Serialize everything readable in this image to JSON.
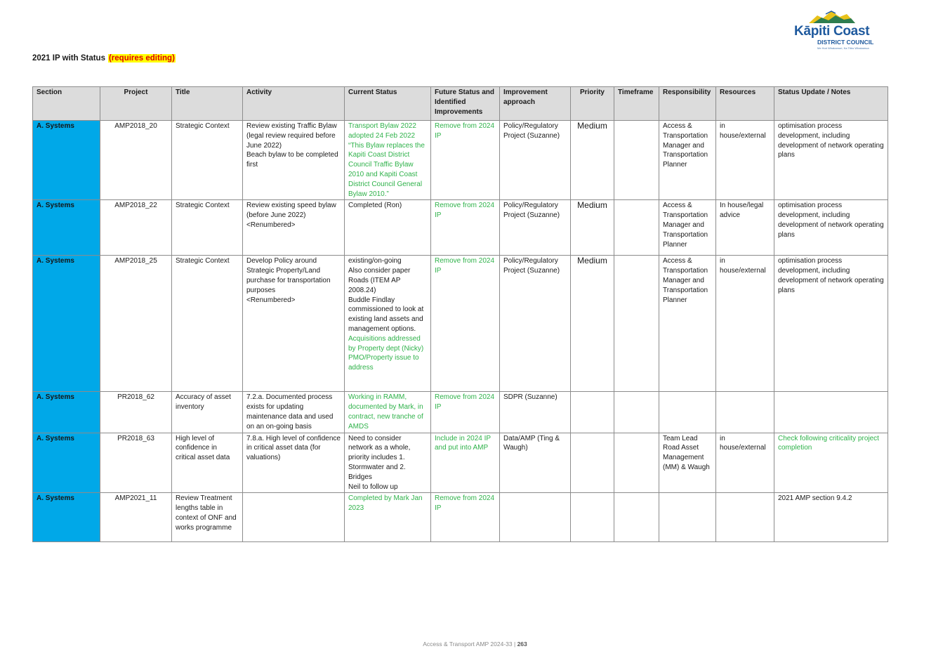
{
  "logo": {
    "name": "Kāpiti Coast",
    "sub": "DISTRICT COUNCIL",
    "tagline": "Me Huri Whakamuri, Ka Titiro Whakamua",
    "colors": {
      "mountain": "#e8c21a",
      "text": "#1f5a9e"
    }
  },
  "heading": {
    "title": "2021  IP with Status",
    "tag": "(requires editing)"
  },
  "table": {
    "headers": [
      "Section",
      "Project",
      "Title",
      "Activity",
      "Current Status",
      "Future Status and Identified Improvements",
      "Improvement approach",
      "Priority",
      "Timeframe",
      "Responsibility",
      "Resources",
      "Status Update / Notes"
    ],
    "rows": [
      {
        "section": "A. Systems",
        "project": "AMP2018_20",
        "title": "Strategic Context",
        "activity": [
          "Review existing Traffic Bylaw (legal review required before June 2022)",
          "Beach bylaw to be completed first"
        ],
        "current_status": [
          {
            "text": "Transport Bylaw 2022 adopted 24 Feb 2022 “This Bylaw replaces the Kapiti Coast District Council Traffic Bylaw 2010 and Kapiti Coast District Council General Bylaw 2010.”",
            "green": true
          }
        ],
        "future": {
          "text": "Remove from 2024 IP",
          "green": true
        },
        "approach": "Policy/Regulatory Project (Suzanne)",
        "priority": "Medium",
        "timeframe": "",
        "responsibility": "Access & Transportation Manager and Transportation Planner",
        "resources": "in house/external",
        "notes": {
          "text": "optimisation process development, including development of network operating plans",
          "green": false
        }
      },
      {
        "section": "A. Systems",
        "project": "AMP2018_22",
        "title": "Strategic Context",
        "activity": [
          "Review existing speed bylaw (before June 2022)",
          "<Renumbered>"
        ],
        "current_status": [
          {
            "text": "Completed (Ron)",
            "green": false
          }
        ],
        "future": {
          "text": "Remove from 2024 IP",
          "green": true
        },
        "approach": "Policy/Regulatory Project (Suzanne)",
        "priority": "Medium",
        "timeframe": "",
        "responsibility": "Access & Transportation Manager and Transportation Planner",
        "resources": "In house/legal advice",
        "notes": {
          "text": "optimisation process development, including development of network operating plans",
          "green": false
        }
      },
      {
        "section": "A. Systems",
        "project": "AMP2018_25",
        "title": "Strategic Context",
        "activity": [
          "Develop Policy around Strategic Property/Land purchase for transportation purposes",
          "<Renumbered>"
        ],
        "current_status": [
          {
            "text": "existing/on-going",
            "green": false
          },
          {
            "text": "Also consider paper Roads (ITEM AP 2008.24)",
            "green": false
          },
          {
            "text": "Buddle Findlay commissioned to look at existing land assets and management options.",
            "green": false
          },
          {
            "text": "Acquisitions addressed by Property dept (Nicky)",
            "green": true
          },
          {
            "text": "PMO/Property issue to address",
            "green": true
          }
        ],
        "future": {
          "text": "Remove from 2024 IP",
          "green": true
        },
        "approach": "Policy/Regulatory Project (Suzanne)",
        "priority": "Medium",
        "timeframe": "",
        "responsibility": "Access & Transportation Manager and Transportation Planner",
        "resources": "in house/external",
        "notes": {
          "text": "optimisation process development, including development of network operating plans",
          "green": false
        }
      },
      {
        "section": "A. Systems",
        "project": "PR2018_62",
        "title": "Accuracy of asset inventory",
        "activity": [
          "7.2.a. Documented process exists for updating maintenance data and used on an on-going basis"
        ],
        "current_status": [
          {
            "text": "Working in RAMM, documented by Mark, in contract, new tranche of AMDS",
            "green": true
          }
        ],
        "future": {
          "text": "Remove from 2024 IP",
          "green": true
        },
        "approach": "SDPR (Suzanne)",
        "priority": "",
        "timeframe": "",
        "responsibility": "",
        "resources": "",
        "notes": {
          "text": "",
          "green": false
        }
      },
      {
        "section": "A. Systems",
        "project": "PR2018_63",
        "title": "High level of confidence in critical  asset data",
        "activity": [
          "7.8.a. High level of confidence in critical  asset data (for valuations)"
        ],
        "current_status": [
          {
            "text": "Need to consider network as a whole, priority includes 1. Stormwater and 2. Bridges",
            "green": false
          },
          {
            "text": "Neil to follow up",
            "green": false
          }
        ],
        "future": {
          "text": "Include in 2024 IP and put into AMP",
          "green": true
        },
        "approach": "Data/AMP (Ting & Waugh)",
        "priority": "",
        "timeframe": "",
        "responsibility": "Team Lead Road Asset Management (MM) & Waugh",
        "resources": "in house/external",
        "notes": {
          "text": "Check following criticality project completion",
          "green": true
        }
      },
      {
        "section": "A. Systems",
        "project": "AMP2021_11",
        "title": "Review Treatment lengths table in context of ONF and works programme",
        "activity": [],
        "current_status": [
          {
            "text": "Completed by Mark Jan 2023",
            "green": true
          }
        ],
        "future": {
          "text": "Remove from 2024 IP",
          "green": true
        },
        "approach": "",
        "priority": "",
        "timeframe": "",
        "responsibility": "",
        "resources": "",
        "notes": {
          "text": "2021 AMP section 9.4.2",
          "green": false
        }
      }
    ]
  },
  "footer": {
    "text": "Access & Transport AMP 2024-33  |",
    "page": "263"
  },
  "colors": {
    "section_bg": "#00a8e8",
    "header_bg": "#dcdcdc",
    "green_text": "#2fb24a",
    "tag_bg": "#ffff00",
    "tag_text": "#e00000"
  }
}
